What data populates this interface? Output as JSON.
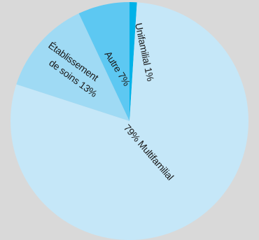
{
  "chart_data": {
    "type": "pie",
    "title": "",
    "slices": [
      {
        "label": "Unifamilial",
        "value": 1,
        "display": "Unifamilial 1%",
        "color": "#00b2e8"
      },
      {
        "label": "Multifamilial",
        "value": 79,
        "display": "79% Multifamilial",
        "color": "#c5e7f8"
      },
      {
        "label": "Établissement de soins",
        "value": 13,
        "display_line1": "Établissement",
        "display_line2": "de soins 13%",
        "color": "#9fdaf4"
      },
      {
        "label": "Autre",
        "value": 7,
        "display": "Autre 7%",
        "color": "#5dc8f2"
      }
    ],
    "legend": "none",
    "grid": false
  }
}
